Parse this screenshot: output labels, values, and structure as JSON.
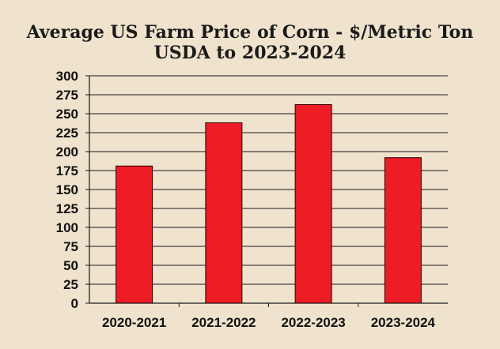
{
  "chart_data": {
    "type": "bar",
    "title": "Average US Farm Price of Corn - $/Metric Ton",
    "subtitle": "USDA to 2023-2024",
    "xlabel": "",
    "ylabel": "",
    "categories": [
      "2020-2021",
      "2021-2022",
      "2022-2023",
      "2023-2024"
    ],
    "values": [
      181,
      238,
      262,
      192
    ],
    "ylim": [
      0,
      300
    ],
    "yticks": [
      0,
      25,
      50,
      75,
      100,
      125,
      150,
      175,
      200,
      225,
      250,
      275,
      300
    ],
    "grid": true,
    "legend": "none",
    "colors": {
      "bar": "#ee1c24",
      "bar_outline": "#2a0000",
      "grid": "#1a1a1a",
      "background": "#efe3cd"
    }
  }
}
